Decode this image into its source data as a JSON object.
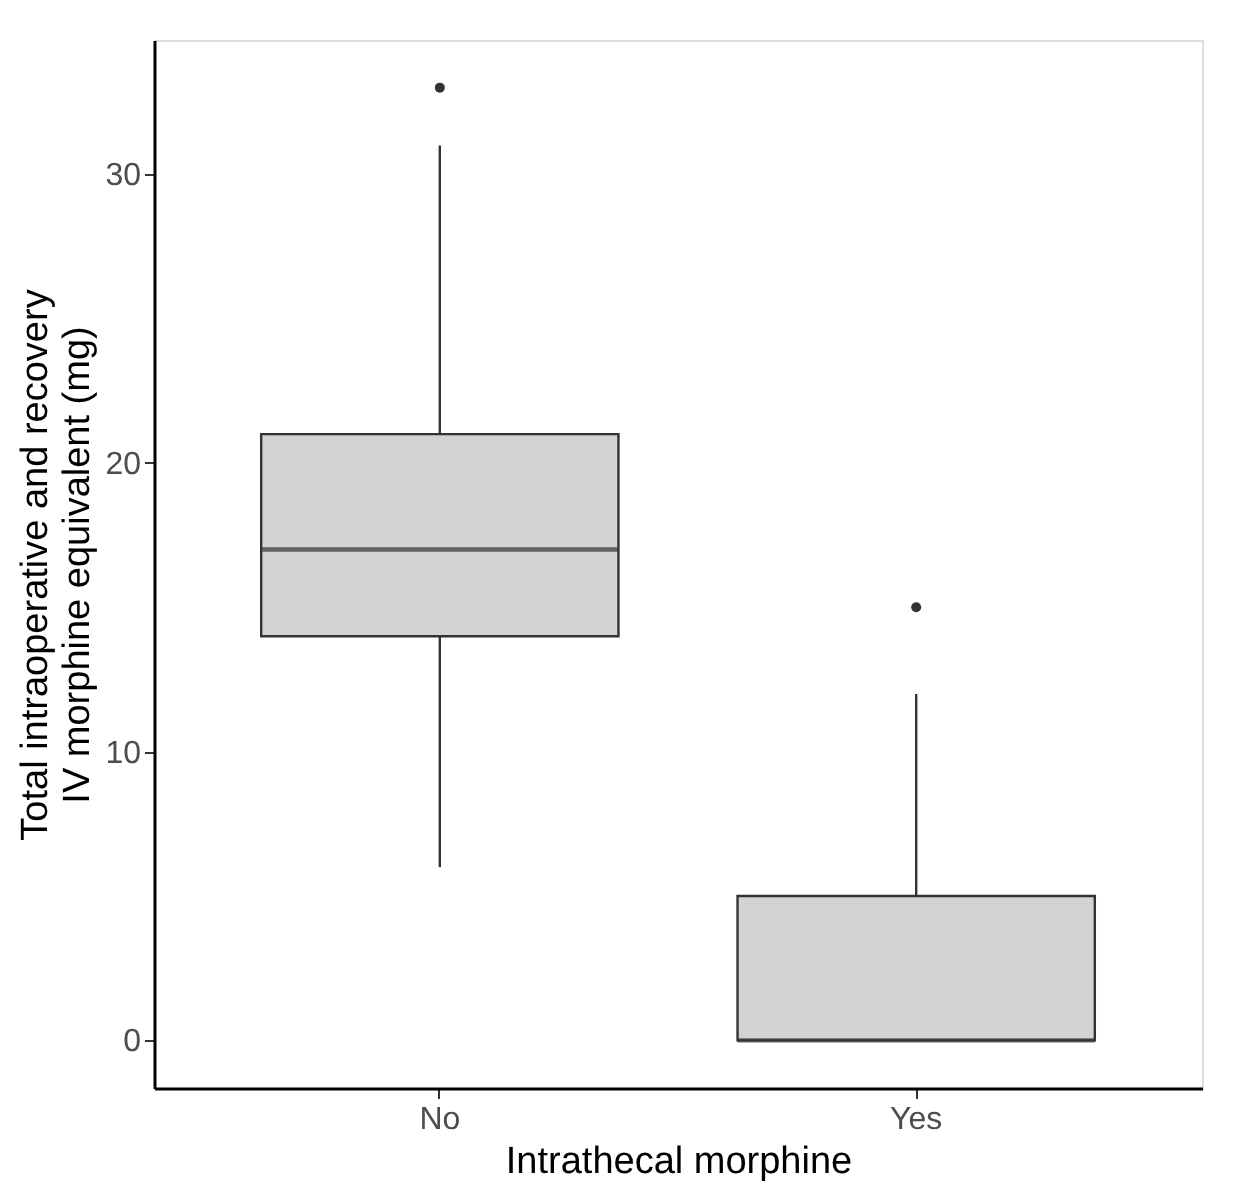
{
  "chart_data": {
    "type": "box",
    "xlabel": "Intrathecal morphine",
    "ylabel": "Total intraoperative and recovery\nIV morphine equivalent (mg)",
    "categories": [
      "No",
      "Yes"
    ],
    "color": "#d3d3d3",
    "boxes": [
      {
        "low": 6,
        "q1": 14,
        "median": 17,
        "q3": 21,
        "high": 31,
        "outliers": [
          33
        ]
      },
      {
        "low": 0,
        "q1": 0,
        "median": 0,
        "q3": 5,
        "high": 12,
        "outliers": [
          15
        ]
      }
    ],
    "ylim": [
      -1.65,
      34.65
    ],
    "yticks": [
      0,
      10,
      20,
      30
    ]
  }
}
